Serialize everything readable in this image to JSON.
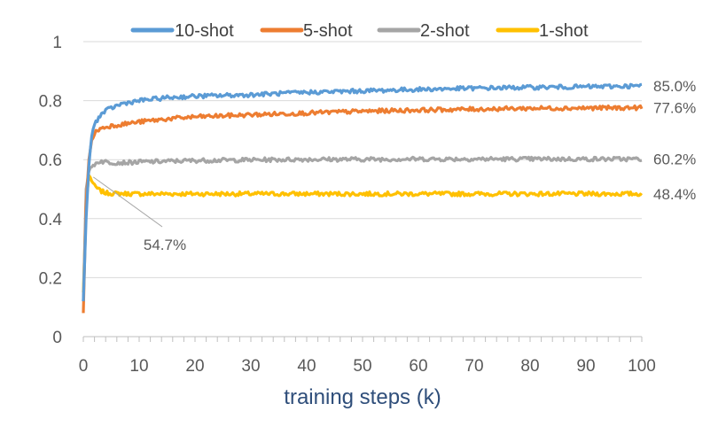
{
  "chart_data": {
    "type": "line",
    "title": "",
    "xlabel": "training steps (k)",
    "ylabel": "",
    "xlim": [
      0,
      100
    ],
    "ylim": [
      0,
      1
    ],
    "xticks": [
      0,
      10,
      20,
      30,
      40,
      50,
      60,
      70,
      80,
      90,
      100
    ],
    "yticks": [
      0,
      0.2,
      0.4,
      0.6,
      0.8,
      1
    ],
    "ytick_labels": [
      "0",
      "0.2",
      "0.4",
      "0.6",
      "0.8",
      "1"
    ],
    "legend_position": "top",
    "series": [
      {
        "name": "10-shot",
        "color": "#5b9bd5",
        "end_label": "85.0%",
        "points": [
          [
            0,
            0.12
          ],
          [
            0.5,
            0.4
          ],
          [
            1,
            0.58
          ],
          [
            1.5,
            0.68
          ],
          [
            2,
            0.72
          ],
          [
            3,
            0.75
          ],
          [
            4,
            0.765
          ],
          [
            5,
            0.775
          ],
          [
            7,
            0.79
          ],
          [
            10,
            0.8
          ],
          [
            15,
            0.81
          ],
          [
            20,
            0.815
          ],
          [
            30,
            0.82
          ],
          [
            40,
            0.828
          ],
          [
            50,
            0.833
          ],
          [
            60,
            0.838
          ],
          [
            70,
            0.842
          ],
          [
            80,
            0.845
          ],
          [
            90,
            0.847
          ],
          [
            100,
            0.85
          ]
        ]
      },
      {
        "name": "5-shot",
        "color": "#ed7d31",
        "end_label": "77.6%",
        "points": [
          [
            0,
            0.08
          ],
          [
            0.5,
            0.45
          ],
          [
            1,
            0.6
          ],
          [
            1.5,
            0.66
          ],
          [
            2,
            0.69
          ],
          [
            3,
            0.705
          ],
          [
            5,
            0.715
          ],
          [
            7,
            0.72
          ],
          [
            10,
            0.728
          ],
          [
            15,
            0.738
          ],
          [
            20,
            0.745
          ],
          [
            30,
            0.752
          ],
          [
            40,
            0.758
          ],
          [
            50,
            0.764
          ],
          [
            60,
            0.768
          ],
          [
            70,
            0.771
          ],
          [
            80,
            0.774
          ],
          [
            90,
            0.775
          ],
          [
            100,
            0.776
          ]
        ]
      },
      {
        "name": "2-shot",
        "color": "#a5a5a5",
        "end_label": "60.2%",
        "points": [
          [
            0,
            0.12
          ],
          [
            0.5,
            0.5
          ],
          [
            1,
            0.56
          ],
          [
            2,
            0.585
          ],
          [
            3,
            0.595
          ],
          [
            5,
            0.59
          ],
          [
            8,
            0.59
          ],
          [
            10,
            0.592
          ],
          [
            20,
            0.597
          ],
          [
            30,
            0.599
          ],
          [
            40,
            0.601
          ],
          [
            50,
            0.601
          ],
          [
            60,
            0.602
          ],
          [
            70,
            0.602
          ],
          [
            80,
            0.602
          ],
          [
            90,
            0.602
          ],
          [
            100,
            0.602
          ]
        ]
      },
      {
        "name": "1-shot",
        "color": "#ffc000",
        "end_label": "48.4%",
        "points": [
          [
            0,
            0.15
          ],
          [
            0.5,
            0.45
          ],
          [
            1,
            0.547
          ],
          [
            1.5,
            0.53
          ],
          [
            2,
            0.51
          ],
          [
            3,
            0.495
          ],
          [
            4,
            0.487
          ],
          [
            6,
            0.485
          ],
          [
            10,
            0.484
          ],
          [
            20,
            0.484
          ],
          [
            40,
            0.484
          ],
          [
            60,
            0.484
          ],
          [
            80,
            0.484
          ],
          [
            100,
            0.484
          ]
        ]
      }
    ],
    "annotations": [
      {
        "text": "54.7%",
        "series": "1-shot",
        "x": 1,
        "y": 0.547
      }
    ]
  }
}
